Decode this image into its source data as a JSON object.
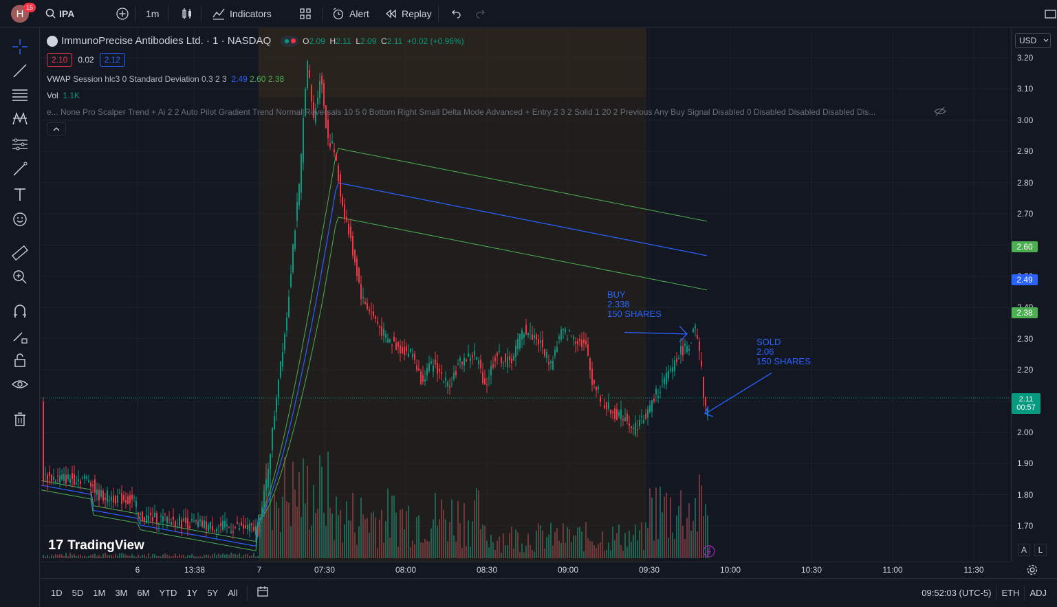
{
  "topbar": {
    "avatar_letter": "H",
    "notifications": "15",
    "symbol": "IPA",
    "interval": "1m",
    "indicators_label": "Indicators",
    "alert_label": "Alert",
    "replay_label": "Replay"
  },
  "legend": {
    "title": "ImmunoPrecise Antibodies Ltd. · 1 · NASDAQ",
    "ohlc": {
      "o_label": "O",
      "o": "2.09",
      "h_label": "H",
      "h": "2.11",
      "l_label": "L",
      "l": "2.09",
      "c_label": "C",
      "c": "2.11",
      "change": "+0.02 (+0.96%)"
    },
    "bid": "2.10",
    "spread": "0.02",
    "ask": "2.12",
    "vwap": {
      "label": "VWAP",
      "params": "Session hlc3 0 Standard Deviation 0.3 2 3",
      "v1": "2.49",
      "v2": "2.60",
      "v3": "2.38"
    },
    "vol": {
      "label": "Vol",
      "value": "1.1K"
    },
    "scalper": "e... None Pro Scalper Trend + Ai 2 2 Auto Pilot Gradient Trend Normal Reversals 10 5 0 Bottom Right Small Delta Mode Advanced + Entry 2 3 2 Solid 1 20 2 Previous Any Buy Signal Disabled 0 Disabled Disabled Disabled Dis..."
  },
  "currency": "USD",
  "price_axis": {
    "ticks": [
      "3.20",
      "3.10",
      "3.00",
      "2.90",
      "2.80",
      "2.70",
      "2.60",
      "2.50",
      "2.40",
      "2.30",
      "2.20",
      "2.10",
      "2.00",
      "1.90",
      "1.80",
      "1.70"
    ],
    "label_upper": "2.60",
    "label_vwap": "2.49",
    "label_lower": "2.38",
    "last_price": "2.11",
    "countdown": "00:57",
    "colors": {
      "upper": "#4caf50",
      "vwap": "#2962ff",
      "lower": "#4caf50",
      "last": "#089981"
    }
  },
  "time_axis": {
    "ticks": [
      "6",
      "13:38",
      "7",
      "07:30",
      "08:00",
      "08:30",
      "09:00",
      "09:30",
      "10:00",
      "10:30",
      "11:00",
      "11:30"
    ]
  },
  "annotations": {
    "buy": "BUY\n2.338\n150 SHARES",
    "sold": "SOLD\n2.06\n150 SHARES"
  },
  "watermark": "TradingView",
  "bottombar": {
    "ranges": [
      "1D",
      "5D",
      "1M",
      "3M",
      "6M",
      "YTD",
      "1Y",
      "5Y",
      "All"
    ],
    "clock": "09:52:03 (UTC-5)",
    "eth": "ETH",
    "adj": "ADJ"
  },
  "axis_buttons": {
    "auto": "A",
    "log": "L"
  },
  "chart_data": {
    "type": "candlestick",
    "symbol": "IPA",
    "interval": "1m",
    "ylim": [
      1.62,
      3.25
    ],
    "series": [
      {
        "name": "VWAP",
        "last": 2.49
      },
      {
        "name": "Upper band",
        "last": 2.6
      },
      {
        "name": "Lower band",
        "last": 2.38
      }
    ],
    "last_close": 2.11
  }
}
